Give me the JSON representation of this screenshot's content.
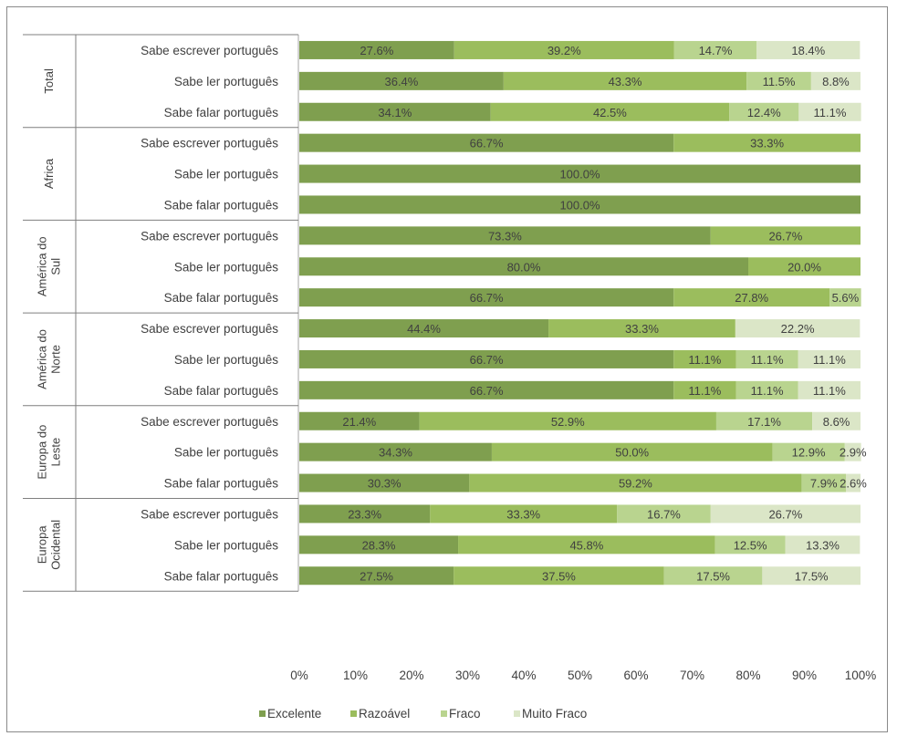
{
  "chart_data": {
    "type": "bar",
    "stacked": "percent",
    "orientation": "horizontal",
    "colors": [
      "#7f9f4f",
      "#9bbd5d",
      "#b9d48f",
      "#dbe6c7"
    ],
    "series": [
      {
        "name": "Excelente"
      },
      {
        "name": "Razoável"
      },
      {
        "name": "Fraco"
      },
      {
        "name": "Muito Fraco"
      }
    ],
    "groups": [
      {
        "label": "Total",
        "rows": [
          {
            "label": "Sabe escrever português",
            "values": [
              27.6,
              39.2,
              14.7,
              18.4
            ],
            "labels": [
              "27.6%",
              "39.2%",
              "14.7%",
              "18.4%"
            ]
          },
          {
            "label": "Sabe ler português",
            "values": [
              36.4,
              43.3,
              11.5,
              8.8
            ],
            "labels": [
              "36.4%",
              "43.3%",
              "11.5%",
              "8.8%"
            ]
          },
          {
            "label": "Sabe falar português",
            "values": [
              34.1,
              42.5,
              12.4,
              11.1
            ],
            "labels": [
              "34.1%",
              "42.5%",
              "12.4%",
              "11.1%"
            ]
          }
        ]
      },
      {
        "label": "Africa",
        "rows": [
          {
            "label": "Sabe escrever português",
            "values": [
              66.7,
              33.3,
              0,
              0
            ],
            "labels": [
              "66.7%",
              "33.3%",
              "",
              ""
            ]
          },
          {
            "label": "Sabe ler português",
            "values": [
              100,
              0,
              0,
              0
            ],
            "labels": [
              "100.0%",
              "",
              "",
              ""
            ]
          },
          {
            "label": "Sabe falar português",
            "values": [
              100,
              0,
              0,
              0
            ],
            "labels": [
              "100.0%",
              "",
              "",
              ""
            ]
          }
        ]
      },
      {
        "label": "América do Sul",
        "rows": [
          {
            "label": "Sabe escrever português",
            "values": [
              73.3,
              26.7,
              0,
              0
            ],
            "labels": [
              "73.3%",
              "26.7%",
              "",
              ""
            ]
          },
          {
            "label": "Sabe ler português",
            "values": [
              80.0,
              20.0,
              0,
              0
            ],
            "labels": [
              "80.0%",
              "20.0%",
              "",
              ""
            ]
          },
          {
            "label": "Sabe falar português",
            "values": [
              66.7,
              27.8,
              5.6,
              0
            ],
            "labels": [
              "66.7%",
              "27.8%",
              "5.6%",
              ""
            ]
          }
        ]
      },
      {
        "label": "América do Norte",
        "rows": [
          {
            "label": "Sabe escrever português",
            "values": [
              44.4,
              33.3,
              0,
              22.2
            ],
            "labels": [
              "44.4%",
              "33.3%",
              "",
              "22.2%"
            ]
          },
          {
            "label": "Sabe ler português",
            "values": [
              66.7,
              11.1,
              11.1,
              11.1
            ],
            "labels": [
              "66.7%",
              "11.1%",
              "11.1%",
              "11.1%"
            ]
          },
          {
            "label": "Sabe falar português",
            "values": [
              66.7,
              11.1,
              11.1,
              11.1
            ],
            "labels": [
              "66.7%",
              "11.1%",
              "11.1%",
              "11.1%"
            ]
          }
        ]
      },
      {
        "label": "Europa do Leste",
        "rows": [
          {
            "label": "Sabe escrever português",
            "values": [
              21.4,
              52.9,
              17.1,
              8.6
            ],
            "labels": [
              "21.4%",
              "52.9%",
              "17.1%",
              "8.6%"
            ]
          },
          {
            "label": "Sabe ler português",
            "values": [
              34.3,
              50.0,
              12.9,
              2.9
            ],
            "labels": [
              "34.3%",
              "50.0%",
              "12.9%",
              "2.9%"
            ]
          },
          {
            "label": "Sabe falar português",
            "values": [
              30.3,
              59.2,
              7.9,
              2.6
            ],
            "labels": [
              "30.3%",
              "59.2%",
              "7.9%",
              "2.6%"
            ]
          }
        ]
      },
      {
        "label": "Europa Ocidental",
        "rows": [
          {
            "label": "Sabe escrever português",
            "values": [
              23.3,
              33.3,
              16.7,
              26.7
            ],
            "labels": [
              "23.3%",
              "33.3%",
              "16.7%",
              "26.7%"
            ]
          },
          {
            "label": "Sabe ler português",
            "values": [
              28.3,
              45.8,
              12.5,
              13.3
            ],
            "labels": [
              "28.3%",
              "45.8%",
              "12.5%",
              "13.3%"
            ]
          },
          {
            "label": "Sabe falar português",
            "values": [
              27.5,
              37.5,
              17.5,
              17.5
            ],
            "labels": [
              "27.5%",
              "37.5%",
              "17.5%",
              "17.5%"
            ]
          }
        ]
      }
    ],
    "xticks": [
      "0%",
      "10%",
      "20%",
      "30%",
      "40%",
      "50%",
      "60%",
      "70%",
      "80%",
      "90%",
      "100%"
    ],
    "xlim": [
      0,
      100
    ],
    "grid": false,
    "legend": "bottom"
  }
}
